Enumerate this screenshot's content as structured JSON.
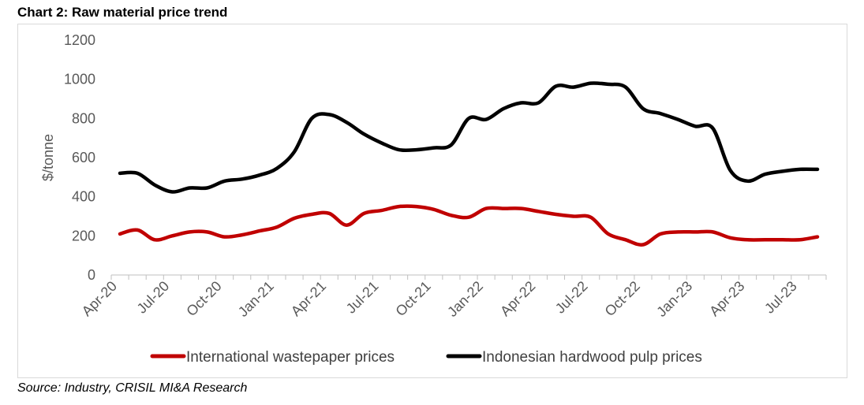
{
  "title": "Chart 2: Raw material price trend",
  "source": "Source: Industry, CRISIL MI&A Research",
  "chart_data": {
    "type": "line",
    "title": "Chart 2: Raw material price trend",
    "ylabel": "$/tonne",
    "xlabel": "",
    "ylim": [
      0,
      1200
    ],
    "yticks": [
      "0",
      "200",
      "400",
      "600",
      "800",
      "1000",
      "1200"
    ],
    "xticks": [
      "Apr-20",
      "Jul-20",
      "Oct-20",
      "Jan-21",
      "Apr-21",
      "Jul-21",
      "Oct-21",
      "Jan-22",
      "Apr-22",
      "Jul-22",
      "Oct-22",
      "Jan-23",
      "Apr-23",
      "Jul-23"
    ],
    "x": [
      "Apr-20",
      "May-20",
      "Jun-20",
      "Jul-20",
      "Aug-20",
      "Sep-20",
      "Oct-20",
      "Nov-20",
      "Dec-20",
      "Jan-21",
      "Feb-21",
      "Mar-21",
      "Apr-21",
      "May-21",
      "Jun-21",
      "Jul-21",
      "Aug-21",
      "Sep-21",
      "Oct-21",
      "Nov-21",
      "Dec-21",
      "Jan-22",
      "Feb-22",
      "Mar-22",
      "Apr-22",
      "May-22",
      "Jun-22",
      "Jul-22",
      "Aug-22",
      "Sep-22",
      "Oct-22",
      "Nov-22",
      "Dec-22",
      "Jan-23",
      "Feb-23",
      "Mar-23",
      "Apr-23",
      "May-23",
      "Jun-23",
      "Jul-23",
      "Aug-23"
    ],
    "grid": false,
    "legend_position": "bottom",
    "series": [
      {
        "name": "International wastepaper prices",
        "color": "#c00000",
        "values": [
          210,
          230,
          180,
          200,
          220,
          220,
          195,
          205,
          225,
          245,
          290,
          310,
          315,
          255,
          315,
          330,
          350,
          350,
          335,
          305,
          295,
          340,
          340,
          340,
          325,
          310,
          300,
          295,
          210,
          180,
          155,
          210,
          220,
          220,
          220,
          190,
          180,
          180,
          180,
          180,
          195
        ]
      },
      {
        "name": "Indonesian hardwood pulp prices",
        "color": "#000000",
        "values": [
          520,
          520,
          460,
          425,
          445,
          445,
          480,
          490,
          510,
          545,
          630,
          800,
          820,
          780,
          720,
          675,
          640,
          640,
          650,
          665,
          800,
          795,
          850,
          880,
          880,
          965,
          960,
          980,
          975,
          960,
          850,
          825,
          795,
          760,
          750,
          535,
          480,
          515,
          530,
          540,
          540
        ]
      }
    ]
  }
}
